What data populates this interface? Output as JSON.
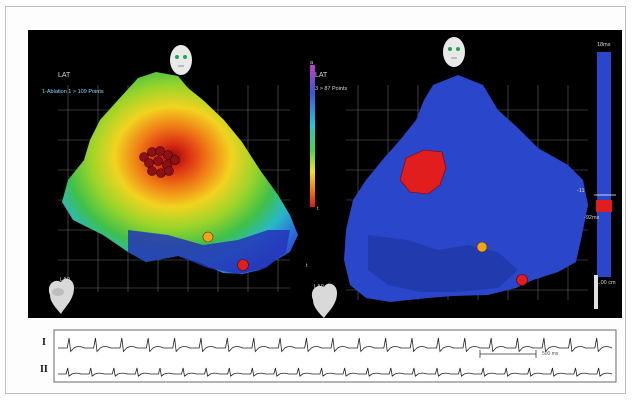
{
  "map_left": {
    "map_label": "LAT",
    "map_name": "1-Ablation 1 > 109 Points",
    "view_label": "LA0"
  },
  "map_right": {
    "map_label": "LAT",
    "map_name": "3 > 87 Points",
    "view_label": "LA0",
    "scale_top": "18ms",
    "scale_marker": "-11",
    "scale_low": "-92ms",
    "scale_bottom": "1.00 cm"
  },
  "colorbar": {
    "top_label": "a",
    "bottom_label": "t",
    "left_edge_label": "t"
  },
  "ecg": {
    "lead_1": "I",
    "lead_2": "II",
    "time_scale": "500 ms"
  },
  "colors": {
    "background": "#000000",
    "map_blue": "#2a47cc",
    "activation_red": "#e11d1d",
    "marker_orange": "#f2a21b",
    "grid": "#9a9a9a"
  }
}
